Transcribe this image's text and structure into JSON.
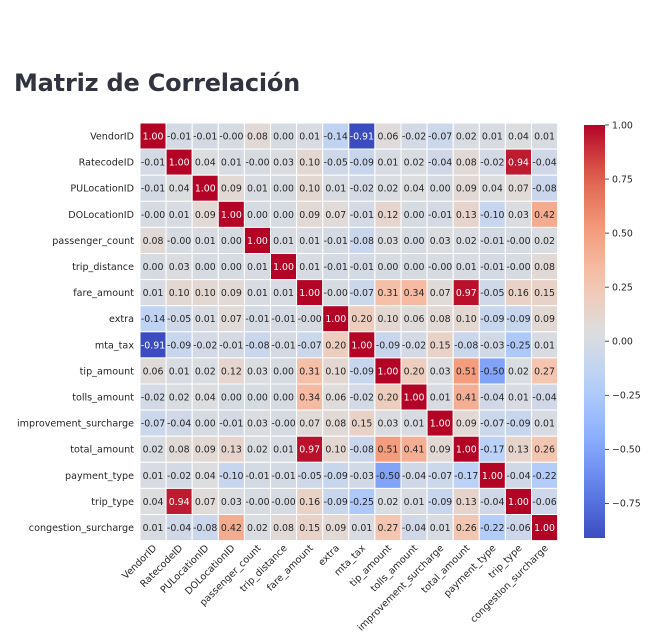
{
  "page": {
    "title": "Matriz de Correlación"
  },
  "chart_data": {
    "type": "heatmap",
    "title": "",
    "labels": [
      "VendorID",
      "RatecodeID",
      "PULocationID",
      "DOLocationID",
      "passenger_count",
      "trip_distance",
      "fare_amount",
      "extra",
      "mta_tax",
      "tip_amount",
      "tolls_amount",
      "improvement_surcharge",
      "total_amount",
      "payment_type",
      "trip_type",
      "congestion_surcharge"
    ],
    "matrix": [
      [
        1.0,
        -0.01,
        -0.01,
        -0.0,
        0.08,
        0.0,
        0.01,
        -0.14,
        -0.91,
        0.06,
        -0.02,
        -0.07,
        0.02,
        0.01,
        0.04,
        0.01
      ],
      [
        -0.01,
        1.0,
        0.04,
        0.01,
        -0.0,
        0.03,
        0.1,
        -0.05,
        -0.09,
        0.01,
        0.02,
        -0.04,
        0.08,
        -0.02,
        0.94,
        -0.04
      ],
      [
        -0.01,
        0.04,
        1.0,
        0.09,
        0.01,
        0.0,
        0.1,
        0.01,
        -0.02,
        0.02,
        0.04,
        0.0,
        0.09,
        0.04,
        0.07,
        -0.08
      ],
      [
        -0.0,
        0.01,
        0.09,
        1.0,
        0.0,
        0.0,
        0.09,
        0.07,
        -0.01,
        0.12,
        0.0,
        -0.01,
        0.13,
        -0.1,
        0.03,
        0.42
      ],
      [
        0.08,
        -0.0,
        0.01,
        0.0,
        1.0,
        0.01,
        0.01,
        -0.01,
        -0.08,
        0.03,
        0.0,
        0.03,
        0.02,
        -0.01,
        -0.0,
        0.02
      ],
      [
        0.0,
        0.03,
        0.0,
        0.0,
        0.01,
        1.0,
        0.01,
        -0.01,
        -0.01,
        0.0,
        0.0,
        -0.0,
        0.01,
        -0.01,
        -0.0,
        0.08
      ],
      [
        0.01,
        0.1,
        0.1,
        0.09,
        0.01,
        0.01,
        1.0,
        -0.0,
        -0.07,
        0.31,
        0.34,
        0.07,
        0.97,
        -0.05,
        0.16,
        0.15
      ],
      [
        -0.14,
        -0.05,
        0.01,
        0.07,
        -0.01,
        -0.01,
        -0.0,
        1.0,
        0.2,
        0.1,
        0.06,
        0.08,
        0.1,
        -0.09,
        -0.09,
        0.09
      ],
      [
        -0.91,
        -0.09,
        -0.02,
        -0.01,
        -0.08,
        -0.01,
        -0.07,
        0.2,
        1.0,
        -0.09,
        -0.02,
        0.15,
        -0.08,
        -0.03,
        -0.25,
        0.01
      ],
      [
        0.06,
        0.01,
        0.02,
        0.12,
        0.03,
        0.0,
        0.31,
        0.1,
        -0.09,
        1.0,
        0.2,
        0.03,
        0.51,
        -0.5,
        0.02,
        0.27
      ],
      [
        -0.02,
        0.02,
        0.04,
        0.0,
        0.0,
        0.0,
        0.34,
        0.06,
        -0.02,
        0.2,
        1.0,
        0.01,
        0.41,
        -0.04,
        0.01,
        -0.04
      ],
      [
        -0.07,
        -0.04,
        0.0,
        -0.01,
        0.03,
        -0.0,
        0.07,
        0.08,
        0.15,
        0.03,
        0.01,
        1.0,
        0.09,
        -0.07,
        -0.09,
        0.01
      ],
      [
        0.02,
        0.08,
        0.09,
        0.13,
        0.02,
        0.01,
        0.97,
        0.1,
        -0.08,
        0.51,
        0.41,
        0.09,
        1.0,
        -0.17,
        0.13,
        0.26
      ],
      [
        0.01,
        -0.02,
        0.04,
        -0.1,
        -0.01,
        -0.01,
        -0.05,
        -0.09,
        -0.03,
        -0.5,
        -0.04,
        -0.07,
        -0.17,
        1.0,
        -0.04,
        -0.22
      ],
      [
        0.04,
        0.94,
        0.07,
        0.03,
        -0.0,
        -0.0,
        0.16,
        -0.09,
        -0.25,
        0.02,
        0.01,
        -0.09,
        0.13,
        -0.04,
        1.0,
        -0.06
      ],
      [
        0.01,
        -0.04,
        -0.08,
        0.42,
        0.02,
        0.08,
        0.15,
        0.09,
        0.01,
        0.27,
        -0.04,
        0.01,
        0.26,
        -0.22,
        -0.06,
        1.0
      ]
    ],
    "value_format": "2 decimals",
    "colormap": "coolwarm",
    "vmin": -0.91,
    "vmax": 1.0,
    "colorbar_ticks": [
      1.0,
      0.75,
      0.5,
      0.25,
      0.0,
      -0.25,
      -0.5,
      -0.75
    ],
    "colorbar_labels": [
      "1.00",
      "0.75",
      "0.50",
      "0.25",
      "0.00",
      "−0.25",
      "−0.50",
      "−0.75"
    ],
    "grid": false,
    "cell_border_color": "#ffffff",
    "colors": {
      "low": "#3b4cc0",
      "mid": "#dddddd",
      "high": "#b40426"
    }
  }
}
